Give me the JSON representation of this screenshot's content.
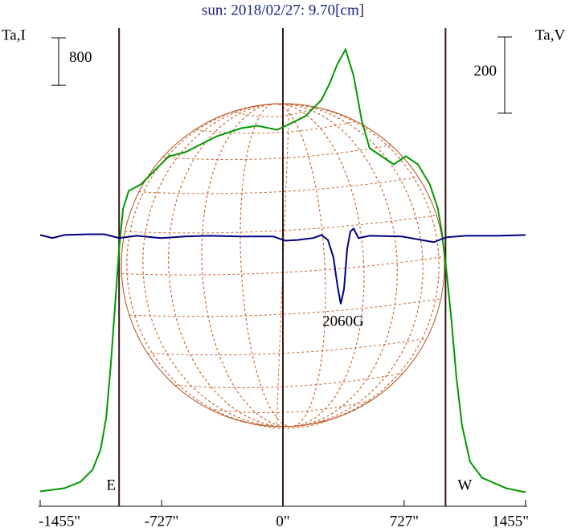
{
  "chart_data": {
    "type": "line",
    "title": "sun: 2018/02/27: 9.70[cm]",
    "y_label": "Ta,I",
    "y2_label": "Ta,V",
    "xlim": [
      -1455,
      1455
    ],
    "xticks": [
      {
        "value": -1455,
        "label": "-1455\""
      },
      {
        "value": -727,
        "label": "-727\""
      },
      {
        "value": 0,
        "label": "0\""
      },
      {
        "value": 727,
        "label": "727\""
      },
      {
        "value": 1455,
        "label": "1455\""
      }
    ],
    "ylim": [
      -250,
      7800
    ],
    "y2lim": [
      -710,
      545
    ],
    "scale_bar": 800,
    "scale_bar2": 200,
    "limbs": [
      {
        "value": -982,
        "label": "E"
      },
      {
        "value": 0
      },
      {
        "value": 975,
        "label": "W"
      }
    ],
    "annotation": "2060G",
    "series": [
      {
        "name": "I",
        "color": "#009900",
        "x": [
          -1455,
          -1310,
          -1213,
          -1141,
          -1093,
          -1059,
          -1030,
          -1006,
          -982,
          -958,
          -924,
          -852,
          -780,
          -684,
          -587,
          -491,
          -395,
          -250,
          -154,
          -34,
          39,
          135,
          231,
          279,
          327,
          376,
          424,
          472,
          520,
          592,
          664,
          737,
          809,
          881,
          929,
          953,
          982,
          1011,
          1040,
          1074,
          1122,
          1194,
          1339,
          1455
        ],
        "values": [
          0,
          54,
          162,
          365,
          703,
          1244,
          2191,
          3138,
          4086,
          4763,
          5061,
          5169,
          5372,
          5642,
          5710,
          5845,
          5980,
          6116,
          6156,
          6089,
          6183,
          6319,
          6589,
          6860,
          7198,
          7441,
          6995,
          6251,
          5777,
          5642,
          5507,
          5642,
          5507,
          5169,
          4763,
          4357,
          3680,
          2868,
          1921,
          1109,
          500,
          230,
          54,
          -14
        ]
      },
      {
        "name": "V",
        "color": "#000080",
        "axis": "y2",
        "x": [
          -1455,
          -1382,
          -1310,
          -1165,
          -1069,
          -982,
          -876,
          -732,
          -587,
          -443,
          -250,
          -58,
          14,
          87,
          183,
          231,
          270,
          303,
          327,
          347,
          366,
          385,
          404,
          424,
          453,
          520,
          713,
          905,
          977,
          1098,
          1290,
          1455
        ],
        "values": [
          2,
          -6,
          2,
          4,
          4,
          -6,
          0,
          -6,
          -2,
          0,
          -2,
          -2,
          -13,
          -11,
          -6,
          2,
          -11,
          -57,
          -131,
          -179,
          -141,
          -36,
          11,
          19,
          -6,
          0,
          -2,
          -17,
          -4,
          0,
          0,
          2
        ]
      }
    ]
  }
}
